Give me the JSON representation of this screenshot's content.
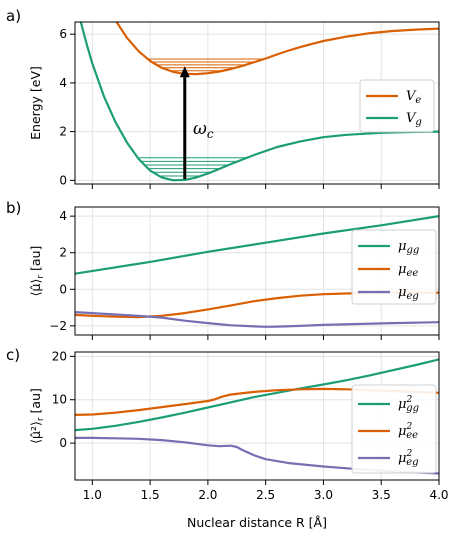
{
  "colors": {
    "green": "#1b9e77",
    "orange": "#d95f02",
    "purple": "#7570b3",
    "grid": "#e3e3e3",
    "axis": "#000000"
  },
  "figure": {
    "xlabel": "Nuclear distance R [Å]"
  },
  "chart_data": [
    {
      "panel_label": "a)",
      "type": "line",
      "ylabel": "Energy [eV]",
      "xlim": [
        0.85,
        4.0
      ],
      "ylim": [
        -0.15,
        6.5
      ],
      "yticks": [
        0,
        2,
        4,
        6
      ],
      "legend_position": "center-right",
      "annotation": "ωc",
      "series": [
        {
          "name": "Ve",
          "color_key": "orange",
          "x": [
            1.21,
            1.3,
            1.4,
            1.5,
            1.6,
            1.7,
            1.8,
            1.9,
            2.0,
            2.1,
            2.2,
            2.3,
            2.4,
            2.5,
            2.6,
            2.7,
            2.8,
            2.9,
            3.0,
            3.2,
            3.4,
            3.6,
            3.8,
            4.0
          ],
          "y": [
            6.5,
            5.85,
            5.3,
            4.9,
            4.62,
            4.45,
            4.37,
            4.36,
            4.4,
            4.47,
            4.57,
            4.7,
            4.85,
            5.0,
            5.17,
            5.33,
            5.47,
            5.6,
            5.72,
            5.9,
            6.04,
            6.13,
            6.19,
            6.23
          ]
        },
        {
          "name": "Vg",
          "color_key": "green",
          "x": [
            0.9,
            0.95,
            1.0,
            1.1,
            1.2,
            1.3,
            1.4,
            1.5,
            1.6,
            1.7,
            1.8,
            1.9,
            2.0,
            2.1,
            2.2,
            2.4,
            2.6,
            2.8,
            3.0,
            3.2,
            3.5,
            3.8,
            4.0
          ],
          "y": [
            6.5,
            5.6,
            4.8,
            3.45,
            2.4,
            1.55,
            0.88,
            0.4,
            0.12,
            0.0,
            0.02,
            0.12,
            0.28,
            0.47,
            0.67,
            1.04,
            1.37,
            1.6,
            1.77,
            1.87,
            1.95,
            1.99,
            2.0
          ]
        }
      ],
      "vibrational_levels": {
        "Ve": [
          4.38,
          4.5,
          4.62,
          4.74,
          4.86,
          4.98
        ],
        "Vg": [
          0.03,
          0.18,
          0.33,
          0.48,
          0.63,
          0.78,
          0.93
        ]
      },
      "arrow": {
        "x": 1.8,
        "y_from": 0.05,
        "y_to": 4.6
      }
    },
    {
      "panel_label": "b)",
      "type": "line",
      "ylabel": "⟨μ̂⟩r [au]",
      "xlim": [
        0.85,
        4.0
      ],
      "ylim": [
        -2.5,
        4.5
      ],
      "yticks": [
        -2,
        0,
        2,
        4
      ],
      "legend_position": "center-right",
      "series": [
        {
          "name": "μgg",
          "color_key": "green",
          "x": [
            0.85,
            1.5,
            2.0,
            2.5,
            3.0,
            3.5,
            4.0
          ],
          "y": [
            0.85,
            1.5,
            2.05,
            2.55,
            3.05,
            3.5,
            4.0
          ]
        },
        {
          "name": "μee",
          "color_key": "orange",
          "x": [
            0.85,
            1.0,
            1.2,
            1.4,
            1.6,
            1.8,
            2.0,
            2.2,
            2.4,
            2.6,
            2.8,
            3.0,
            3.3,
            3.6,
            4.0
          ],
          "y": [
            -1.4,
            -1.45,
            -1.5,
            -1.52,
            -1.45,
            -1.3,
            -1.1,
            -0.88,
            -0.65,
            -0.48,
            -0.35,
            -0.27,
            -0.21,
            -0.19,
            -0.18
          ]
        },
        {
          "name": "μeg",
          "color_key": "purple",
          "x": [
            0.85,
            1.0,
            1.2,
            1.4,
            1.6,
            1.8,
            2.0,
            2.2,
            2.4,
            2.5,
            2.6,
            2.8,
            3.0,
            3.3,
            3.6,
            4.0
          ],
          "y": [
            -1.25,
            -1.3,
            -1.38,
            -1.45,
            -1.55,
            -1.72,
            -1.85,
            -1.97,
            -2.03,
            -2.05,
            -2.04,
            -2.0,
            -1.95,
            -1.9,
            -1.85,
            -1.8
          ]
        }
      ]
    },
    {
      "panel_label": "c)",
      "type": "line",
      "ylabel": "⟨μ̂²⟩r [au]",
      "xlim": [
        0.85,
        4.0
      ],
      "ylim": [
        -8.5,
        21
      ],
      "yticks": [
        0,
        10,
        20
      ],
      "legend_position": "center-right",
      "series": [
        {
          "name": "μ²gg",
          "color_key": "green",
          "x": [
            0.85,
            1.0,
            1.2,
            1.4,
            1.6,
            1.8,
            2.0,
            2.2,
            2.4,
            2.6,
            2.8,
            3.0,
            3.2,
            3.4,
            3.6,
            3.8,
            4.0
          ],
          "y": [
            3.0,
            3.3,
            4.0,
            4.9,
            5.9,
            7.0,
            8.2,
            9.4,
            10.6,
            11.6,
            12.6,
            13.5,
            14.5,
            15.6,
            16.8,
            18.0,
            19.3
          ]
        },
        {
          "name": "μ²ee",
          "color_key": "orange",
          "x": [
            0.85,
            1.0,
            1.2,
            1.4,
            1.6,
            1.8,
            2.0,
            2.05,
            2.1,
            2.15,
            2.2,
            2.4,
            2.6,
            2.8,
            3.0,
            3.2,
            3.4,
            3.6,
            3.8,
            4.0
          ],
          "y": [
            6.5,
            6.6,
            7.0,
            7.6,
            8.3,
            9.0,
            9.7,
            10.0,
            10.5,
            10.9,
            11.2,
            11.8,
            12.2,
            12.4,
            12.5,
            12.4,
            12.2,
            12.0,
            11.8,
            11.6
          ]
        },
        {
          "name": "μ²eg",
          "color_key": "purple",
          "x": [
            0.85,
            1.0,
            1.2,
            1.4,
            1.6,
            1.8,
            2.0,
            2.1,
            2.2,
            2.25,
            2.3,
            2.4,
            2.5,
            2.7,
            3.0,
            3.3,
            3.6,
            4.0
          ],
          "y": [
            1.2,
            1.2,
            1.1,
            1.0,
            0.7,
            0.2,
            -0.5,
            -0.7,
            -0.6,
            -0.9,
            -1.6,
            -2.8,
            -3.7,
            -4.6,
            -5.4,
            -6.0,
            -6.5,
            -7.0
          ]
        }
      ]
    }
  ],
  "xticks": [
    1.0,
    1.5,
    2.0,
    2.5,
    3.0,
    3.5,
    4.0
  ],
  "xtick_labels": [
    "1.0",
    "1.5",
    "2.0",
    "2.5",
    "3.0",
    "3.5",
    "4.0"
  ]
}
